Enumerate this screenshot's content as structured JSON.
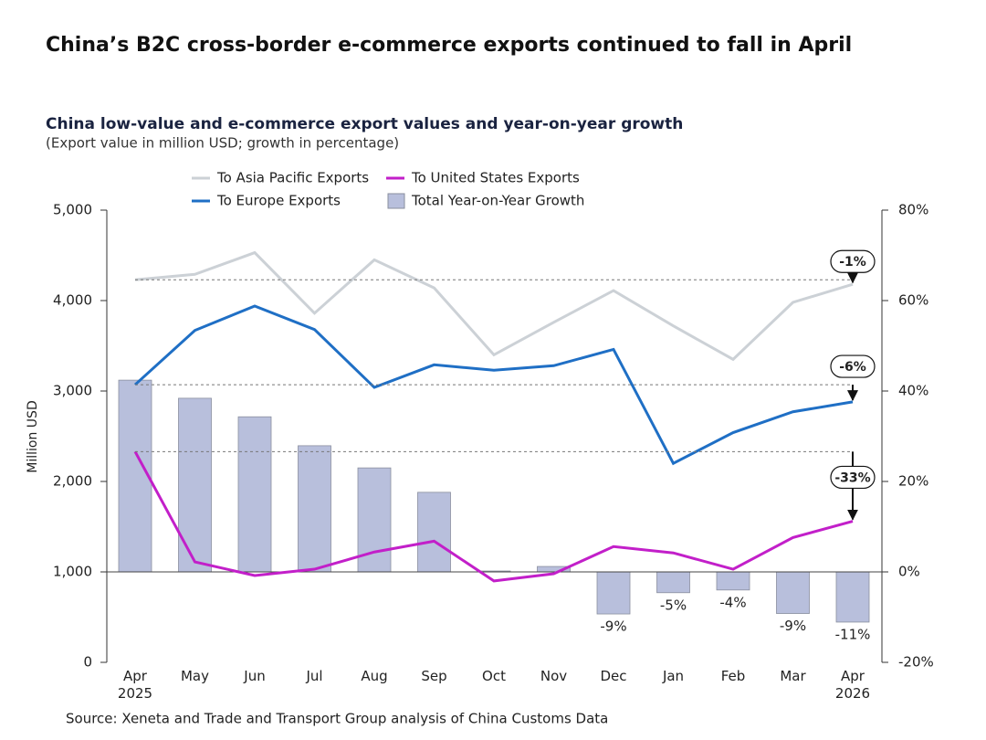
{
  "chart_data": {
    "type": "line",
    "title": "China’s B2C cross-border e-commerce exports continued to fall in April",
    "subtitle": "China low-value and e-commerce export values and year-on-year growth",
    "note": "(Export value in million USD; growth in percentage)",
    "ylabel": "Million USD",
    "source": "Source: Xeneta and Trade and Transport Group analysis of China Customs Data",
    "categories": [
      "Apr\n2025",
      "May",
      "Jun",
      "Jul",
      "Aug",
      "Sep",
      "Oct",
      "Nov",
      "Dec",
      "Jan",
      "Feb",
      "Mar",
      "Apr\n2026"
    ],
    "series": [
      {
        "name": "To Asia Pacific Exports",
        "color": "#ccd1d6",
        "values": [
          4230,
          4290,
          4530,
          3860,
          4450,
          4140,
          3400,
          3760,
          4110,
          3720,
          3350,
          3980,
          4180
        ]
      },
      {
        "name": "To Europe Exports",
        "color": "#1f6fc5",
        "values": [
          3070,
          3670,
          3940,
          3680,
          3040,
          3290,
          3230,
          3280,
          3460,
          2200,
          2540,
          2770,
          2880
        ]
      },
      {
        "name": "To United States Exports",
        "color": "#c21fc9",
        "values": [
          2330,
          1110,
          960,
          1030,
          1220,
          1340,
          900,
          980,
          1280,
          1210,
          1030,
          1380,
          1560
        ]
      },
      {
        "name": "Total Year-on-Year Growth",
        "type": "bar",
        "axis": "y2",
        "color": "#b8bfdc",
        "values": [
          42.4,
          38.4,
          34.3,
          27.9,
          23,
          17.6,
          0.2,
          1.2,
          -9.3,
          -4.6,
          -4,
          -9.2,
          -11.1
        ],
        "value_labels": [
          null,
          null,
          null,
          null,
          null,
          null,
          null,
          null,
          "-9%",
          "-5%",
          "-4%",
          "-9%",
          "-11%"
        ]
      }
    ],
    "annotations": [
      "-1%",
      "-6%",
      "-33%"
    ],
    "ylim": [
      0,
      5000
    ],
    "yticks": [
      0,
      {
        "value": 1000,
        "label": "1,000"
      },
      {
        "value": 2000,
        "label": "2,000"
      },
      {
        "value": 3000,
        "label": "3,000"
      },
      {
        "value": 4000,
        "label": "4,000"
      },
      {
        "value": 5000,
        "label": "5,000"
      }
    ],
    "y2lim": [
      -20,
      80
    ],
    "y2ticks": [
      {
        "value": -20,
        "label": "-20%"
      },
      {
        "value": 0,
        "label": "0%"
      },
      {
        "value": 20,
        "label": "20%"
      },
      {
        "value": 40,
        "label": "40%"
      },
      {
        "value": 60,
        "label": "60%"
      },
      {
        "value": 80,
        "label": "80%"
      }
    ]
  }
}
